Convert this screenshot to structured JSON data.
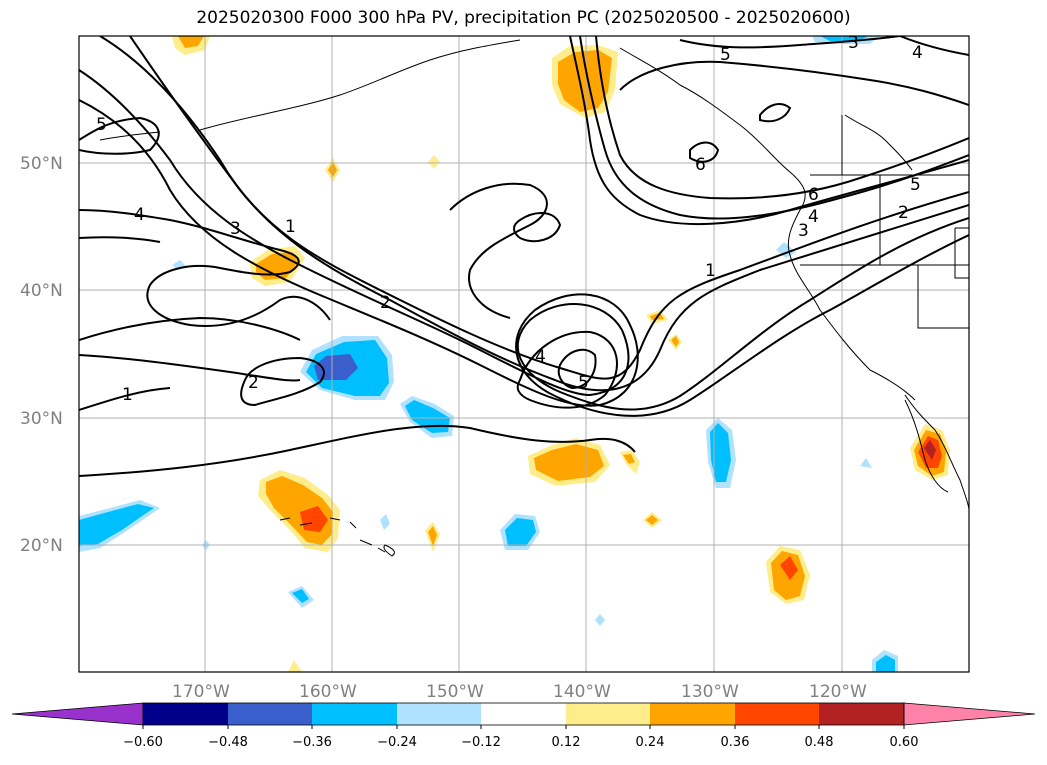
{
  "title": "2025020300 F000 300 hPa PV, precipitation PC (2025020500 - 2025020600)",
  "lat_labels": [
    "50°N",
    "40°N",
    "30°N",
    "20°N"
  ],
  "lon_labels": [
    "170°W",
    "160°W",
    "150°W",
    "140°W",
    "130°W",
    "120°W"
  ],
  "colorbar": {
    "ticks": [
      "−0.60",
      "−0.48",
      "−0.36",
      "−0.24",
      "−0.12",
      "0.12",
      "0.24",
      "0.36",
      "0.48",
      "0.60"
    ],
    "colors": [
      "#9932cc",
      "#00008b",
      "#3a5fcd",
      "#00bfff",
      "#b0e2ff",
      "#ffffff",
      "#ffec8b",
      "#ffa500",
      "#ff4500",
      "#b22222",
      "#ff82ab"
    ]
  },
  "pv_contour_labels": [
    "1",
    "1",
    "2",
    "2",
    "3",
    "3",
    "4",
    "4",
    "4",
    "5",
    "5",
    "5",
    "6",
    "6",
    "1",
    "2",
    "3",
    "4",
    "5"
  ],
  "shading_colors": {
    "light_blue": "#b0e2ff",
    "blue": "#00bfff",
    "mid_blue": "#3a5fcd",
    "yellow": "#ffec8b",
    "orange": "#ffa500",
    "red": "#ff4500",
    "dark_red": "#b22222"
  }
}
